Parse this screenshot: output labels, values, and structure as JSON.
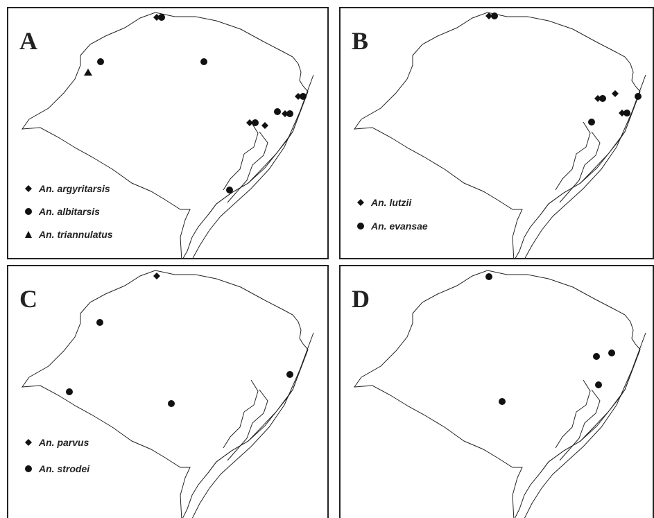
{
  "figure": {
    "panels": [
      {
        "id": "A",
        "letter": "A",
        "legend": [
          {
            "symbol": "diamond",
            "label": "An. argyritarsis"
          },
          {
            "symbol": "circle",
            "label": "An. albitarsis"
          },
          {
            "symbol": "triangle",
            "label": "An. triannulatus"
          }
        ]
      },
      {
        "id": "B",
        "letter": "B",
        "legend": [
          {
            "symbol": "diamond",
            "label": "An. lutzii"
          },
          {
            "symbol": "circle",
            "label": "An. evansae"
          }
        ]
      },
      {
        "id": "C",
        "letter": "C",
        "legend": [
          {
            "symbol": "diamond",
            "label": "An. parvus"
          },
          {
            "symbol": "circle",
            "label": "An. strodei"
          }
        ]
      },
      {
        "id": "D",
        "letter": "D",
        "legend": []
      }
    ]
  }
}
